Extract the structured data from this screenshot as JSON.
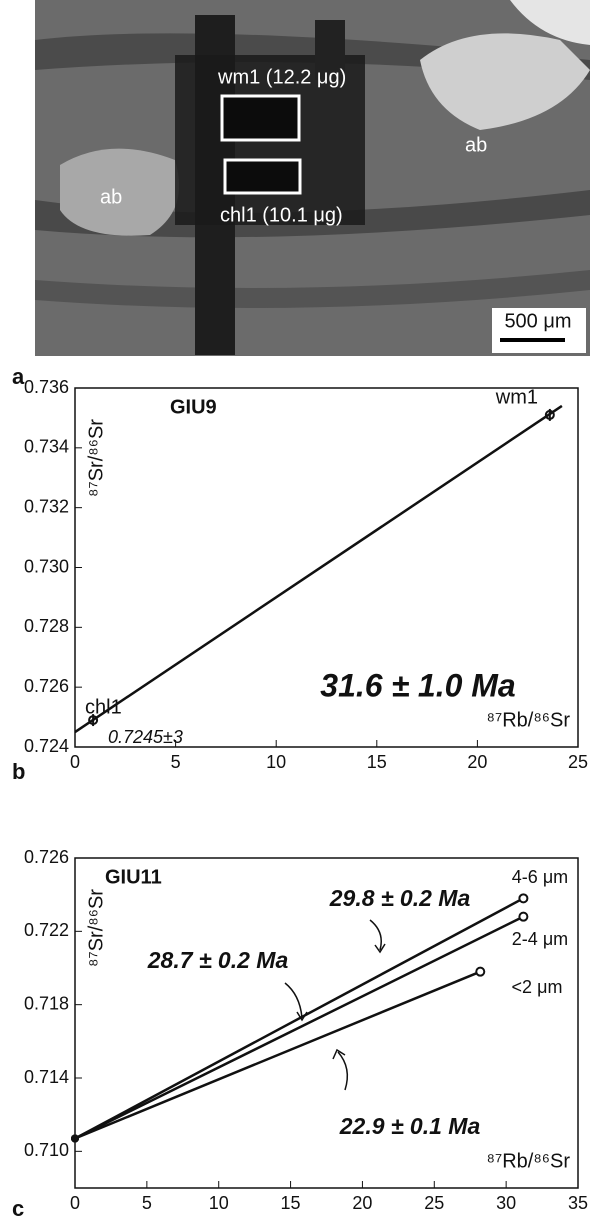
{
  "panel_a": {
    "label": "a",
    "box_labels": [
      "wm1 (12.2 μg)",
      "chl1 (10.1 μg)"
    ],
    "mineral_labels": [
      "ab",
      "ab"
    ],
    "scale_bar": "500 μm"
  },
  "chart_data": [
    {
      "type": "isochron",
      "panel": "b",
      "title": "GIU9",
      "age": "31.6 ± 1.0 Ma",
      "intercept": "0.7245±3",
      "y_label": "⁸⁷Sr/⁸⁶Sr",
      "x_label": "⁸⁷Rb/⁸⁶Sr",
      "xlim": [
        0,
        25
      ],
      "xticks": [
        0,
        5,
        10,
        15,
        20,
        25
      ],
      "ylim": [
        0.724,
        0.736
      ],
      "yticks": [
        0.724,
        0.726,
        0.728,
        {
          "value": 0.73,
          "label": "0.730"
        },
        0.732,
        0.734,
        0.736
      ],
      "points": {
        "labels": [
          "chl1",
          "wm1"
        ],
        "x": [
          0.9,
          23.6
        ],
        "values": [
          0.7249,
          0.7351
        ],
        "yerr": [
          0.0002,
          0.0002
        ]
      },
      "fit": {
        "x": [
          0,
          24.2
        ],
        "values": [
          0.7245,
          0.7354
        ]
      },
      "color": "#111111"
    },
    {
      "type": "isochron-multi",
      "panel": "c",
      "title": "GIU11",
      "y_label": "⁸⁷Sr/⁸⁶Sr",
      "x_label": "⁸⁷Rb/⁸⁶Sr",
      "ages": [
        "29.8 ± 0.2 Ma",
        "28.7 ± 0.2 Ma",
        "22.9 ± 0.1 Ma"
      ],
      "xlim": [
        0,
        35
      ],
      "xticks": [
        0,
        5,
        10,
        15,
        20,
        25,
        30,
        35
      ],
      "ylim": [
        0.708,
        0.726
      ],
      "yticks": [
        {
          "value": 0.71,
          "label": "0.710"
        },
        0.714,
        0.718,
        0.722,
        0.726
      ],
      "series": [
        {
          "name": "4-6 μm",
          "color": "#111111",
          "x": [
            0,
            31.2
          ],
          "values": [
            0.7107,
            0.7238
          ]
        },
        {
          "name": "2-4 μm",
          "color": "#111111",
          "x": [
            0,
            31.2
          ],
          "values": [
            0.7107,
            0.7228
          ]
        },
        {
          "name": "<2 μm",
          "color": "#111111",
          "x": [
            0,
            28.2
          ],
          "values": [
            0.7107,
            0.7198
          ]
        }
      ]
    }
  ]
}
